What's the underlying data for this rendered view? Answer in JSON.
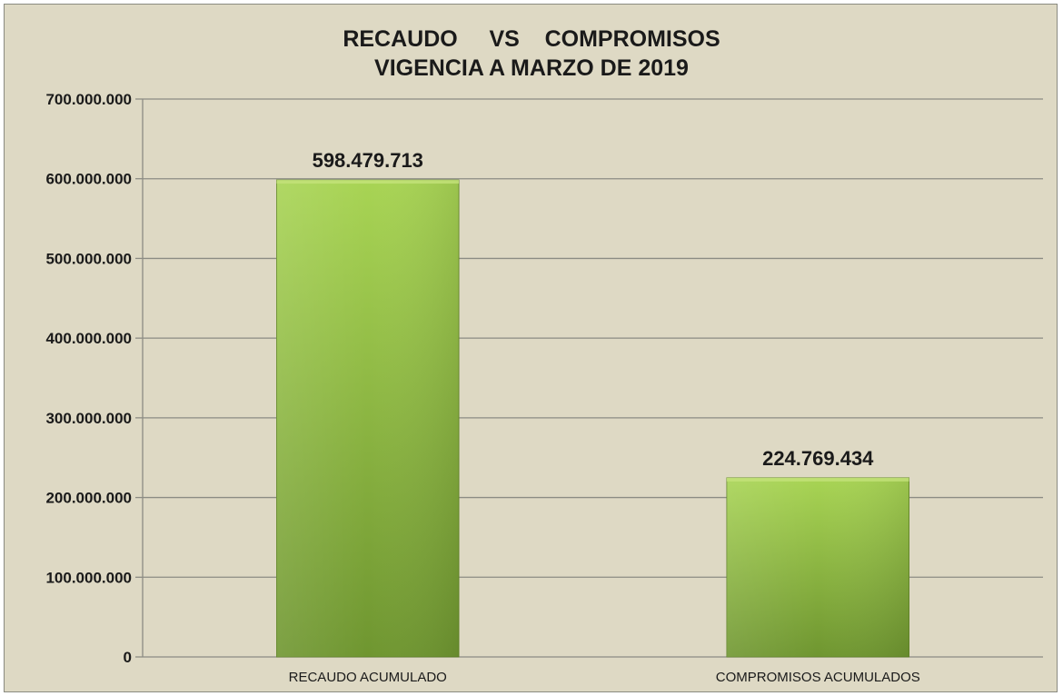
{
  "chart_data": {
    "type": "bar",
    "title_line1": "RECAUDO     VS    COMPROMISOS",
    "title_line2": "VIGENCIA A MARZO DE 2019",
    "categories": [
      "RECAUDO ACUMULADO",
      "COMPROMISOS ACUMULADOS"
    ],
    "values": [
      598479713,
      224769434
    ],
    "data_labels": [
      "598.479.713",
      "224.769.434"
    ],
    "ylim": [
      0,
      700000000
    ],
    "yticks": [
      0,
      100000000,
      200000000,
      300000000,
      400000000,
      500000000,
      600000000,
      700000000
    ],
    "ytick_labels": [
      "0",
      "100.000.000",
      "200.000.000",
      "300.000.000",
      "400.000.000",
      "500.000.000",
      "600.000.000",
      "700.000.000"
    ],
    "grid": true,
    "legend": "none",
    "colors": {
      "bar_light": "#a8d454",
      "bar_dark": "#6f9630",
      "background": "#ded9c4",
      "gridline": "#8c8c84"
    }
  }
}
